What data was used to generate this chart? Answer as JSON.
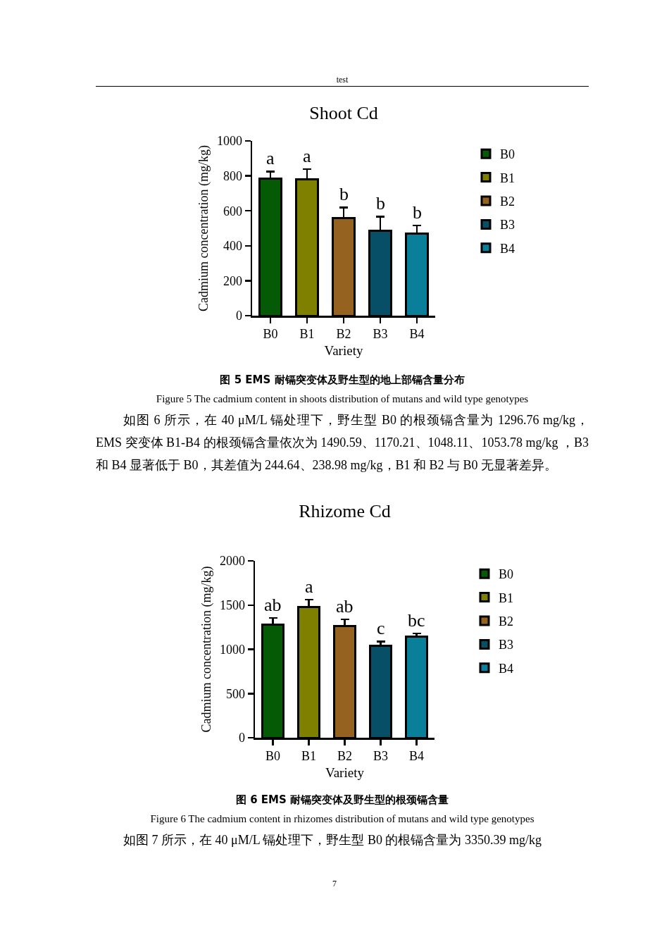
{
  "chart_data": [
    {
      "type": "bar",
      "title": "Shoot Cd",
      "xlabel": "Variety",
      "ylabel": "Cadmium concentration (mg/kg)",
      "categories": [
        "B0",
        "B1",
        "B2",
        "B3",
        "B4"
      ],
      "stacked": true,
      "series": [
        {
          "name": "B0",
          "color": "#055a05",
          "values": [
            785,
            null,
            null,
            null,
            null
          ],
          "errors": [
            [
              785,
              825
            ],
            null,
            null,
            null,
            null
          ]
        },
        {
          "name": "B1",
          "color": "#7f7f00",
          "values": [
            null,
            779,
            null,
            null,
            null
          ],
          "errors": [
            null,
            [
              779,
              838
            ],
            null,
            null,
            null
          ]
        },
        {
          "name": "B2",
          "color": "#96621f",
          "values": [
            null,
            null,
            560,
            null,
            null
          ],
          "errors": [
            null,
            null,
            [
              560,
              619
            ],
            null,
            null
          ]
        },
        {
          "name": "B3",
          "color": "#064f66",
          "values": [
            null,
            null,
            null,
            487,
            null
          ],
          "errors": [
            null,
            null,
            null,
            [
              487,
              567
            ],
            null
          ]
        },
        {
          "name": "B4",
          "color": "#0a7f9a",
          "values": [
            null,
            null,
            null,
            null,
            469
          ],
          "errors": [
            null,
            null,
            null,
            null,
            [
              469,
              516
            ]
          ]
        }
      ],
      "ylim": [
        0,
        1000
      ],
      "yticks": [
        0,
        200,
        400,
        600,
        800,
        1000
      ],
      "legend": "top right",
      "annotations": [
        "test",
        "a",
        "a",
        "b",
        "b",
        "b",
        "图 5 EMS 耐镉突变体及野生型的地上部镉含量分布",
        "Figure 5 The cadmium content in shoots distribution of mutans and wild type genotypes",
        "如图 6 所示，在 40 μM/L 镉处理下，野生型 B0 的根颈镉含量为 1296.76 mg/kg，EMS 突变体 B1-B4 的根颈镉含量依次为 1490.59、1170.21、1048.11、1053.78 mg/kg ，B3 和 B4 显著低于 B0，其差值为 244.64、238.98 mg/kg，B1 和 B2 与 B0 无显著差异。"
      ]
    },
    {
      "type": "bar",
      "title": "Rhizome Cd",
      "xlabel": "Variety",
      "ylabel": "Cadmium concentration (mg/kg)",
      "categories": [
        "B0",
        "B1",
        "B2",
        "B3",
        "B4"
      ],
      "stacked": true,
      "series": [
        {
          "name": "B0",
          "color": "#055a05",
          "values": [
            1279,
            null,
            null,
            null,
            null
          ],
          "errors": [
            [
              1279,
              1354
            ],
            null,
            null,
            null,
            null
          ]
        },
        {
          "name": "B1",
          "color": "#7f7f00",
          "values": [
            null,
            1478,
            null,
            null,
            null
          ],
          "errors": [
            null,
            [
              1478,
              1563
            ],
            null,
            null,
            null
          ]
        },
        {
          "name": "B2",
          "color": "#96621f",
          "values": [
            null,
            null,
            1264,
            null,
            null
          ],
          "errors": [
            null,
            null,
            [
              1264,
              1340
            ],
            null,
            null
          ]
        },
        {
          "name": "B3",
          "color": "#064f66",
          "values": [
            null,
            null,
            null,
            1036,
            null
          ],
          "errors": [
            null,
            null,
            null,
            [
              1036,
              1089
            ],
            null
          ]
        },
        {
          "name": "B4",
          "color": "#0a7f9a",
          "values": [
            null,
            null,
            null,
            null,
            1147
          ],
          "errors": [
            null,
            null,
            null,
            null,
            [
              1147,
              1179
            ]
          ]
        }
      ],
      "ylim": [
        0,
        2000
      ],
      "yticks": [
        0,
        500,
        1000,
        1500,
        2000
      ],
      "legend": "top right",
      "annotations": [
        "ab",
        "a",
        "ab",
        "c",
        "bc",
        "图 6 EMS 耐镉突变体及野生型的根颈镉含量",
        "Figure 6 The cadmium content in rhizomes distribution of mutans and wild type genotypes",
        "如图 7 所示，在 40 μM/L 镉处理下，野生型 B0 的根镉含量为 3350.39 mg/kg",
        "7"
      ]
    }
  ]
}
